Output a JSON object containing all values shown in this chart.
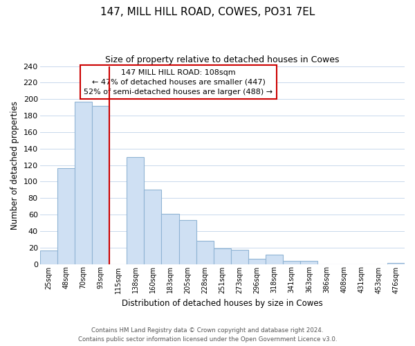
{
  "title": "147, MILL HILL ROAD, COWES, PO31 7EL",
  "subtitle": "Size of property relative to detached houses in Cowes",
  "xlabel": "Distribution of detached houses by size in Cowes",
  "ylabel": "Number of detached properties",
  "categories": [
    "25sqm",
    "48sqm",
    "70sqm",
    "93sqm",
    "115sqm",
    "138sqm",
    "160sqm",
    "183sqm",
    "205sqm",
    "228sqm",
    "251sqm",
    "273sqm",
    "296sqm",
    "318sqm",
    "341sqm",
    "363sqm",
    "386sqm",
    "408sqm",
    "431sqm",
    "453sqm",
    "476sqm"
  ],
  "values": [
    16,
    116,
    197,
    192,
    0,
    130,
    90,
    61,
    53,
    28,
    19,
    17,
    6,
    11,
    4,
    4,
    0,
    0,
    0,
    0,
    1
  ],
  "bar_color": "#cfe0f3",
  "bar_edgecolor": "#90b4d4",
  "vline_color": "#cc0000",
  "vline_position": 3.5,
  "annotation_title": "147 MILL HILL ROAD: 108sqm",
  "annotation_line1": "← 47% of detached houses are smaller (447)",
  "annotation_line2": "52% of semi-detached houses are larger (488) →",
  "annotation_box_edgecolor": "#cc0000",
  "ylim": [
    0,
    240
  ],
  "yticks": [
    0,
    20,
    40,
    60,
    80,
    100,
    120,
    140,
    160,
    180,
    200,
    220,
    240
  ],
  "footer_line1": "Contains HM Land Registry data © Crown copyright and database right 2024.",
  "footer_line2": "Contains public sector information licensed under the Open Government Licence v3.0.",
  "background_color": "#ffffff",
  "grid_color": "#c8d8ec"
}
